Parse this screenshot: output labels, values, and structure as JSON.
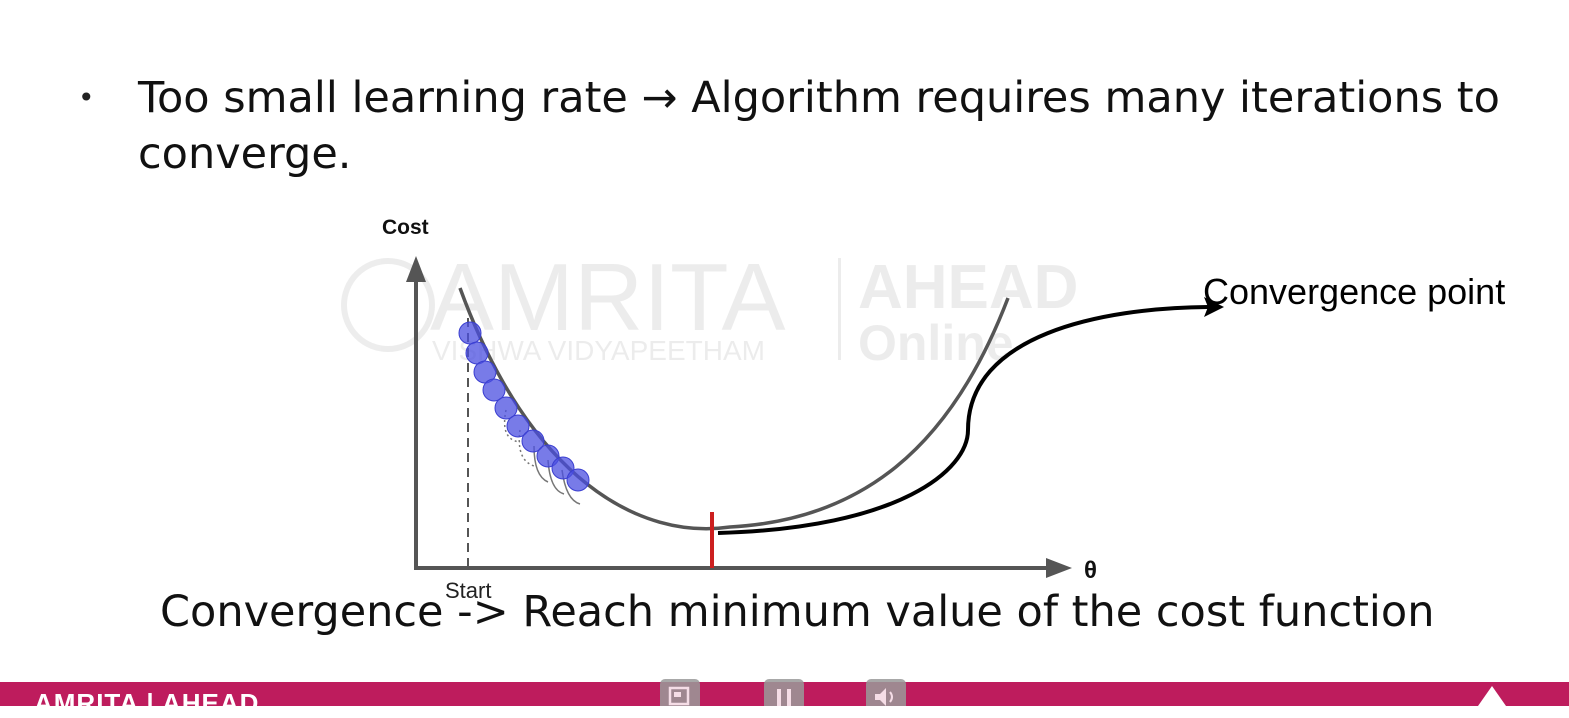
{
  "slide": {
    "bullet": "Too small learning rate → Algorithm requires many iterations to converge.",
    "caption": "Convergence -> Reach minimum value of the cost function"
  },
  "diagram": {
    "y_axis_label": "Cost",
    "x_axis_label": "θ",
    "start_label": "Start",
    "convergence_label": "Convergence point",
    "watermark_brand": "AMRITA",
    "watermark_sub": "VISHWA VIDYAPEETHAM",
    "watermark_partner": "AHEAD",
    "watermark_partner_sub": "Online",
    "step_count": 10
  },
  "footer": {
    "logo_text": "AMRITA | AHEAD",
    "controls": [
      "screen-icon",
      "pause-icon",
      "volume-icon"
    ],
    "bar_color": "#be1c5d"
  },
  "colors": {
    "curve": "#555555",
    "steps": "#4b4fe0",
    "minimum_marker": "#cc1f1f"
  }
}
